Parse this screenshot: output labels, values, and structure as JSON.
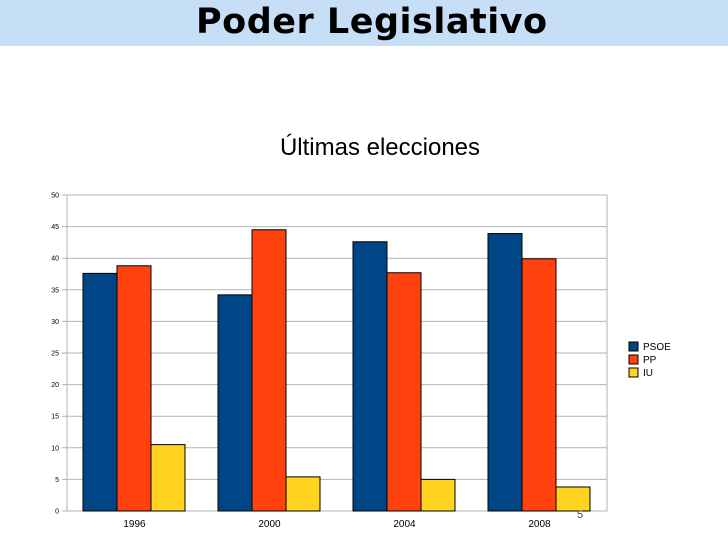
{
  "slide": {
    "title": "Poder Legislativo",
    "page_number": "5"
  },
  "colors": {
    "title_bar": "#c6def6",
    "PSOE": "#004586",
    "PP": "#ff420e",
    "IU": "#ffd320",
    "grid": "#b3b3b3"
  },
  "chart_data": {
    "type": "bar",
    "title": "Últimas elecciones",
    "xlabel": "",
    "ylabel": "",
    "categories": [
      "1996",
      "2000",
      "2004",
      "2008"
    ],
    "series": [
      {
        "name": "PSOE",
        "values": [
          37.6,
          34.2,
          42.6,
          43.9
        ]
      },
      {
        "name": "PP",
        "values": [
          38.8,
          44.5,
          37.7,
          39.9
        ]
      },
      {
        "name": "IU",
        "values": [
          10.5,
          5.4,
          5.0,
          3.8
        ]
      }
    ],
    "ylim": [
      0,
      50
    ],
    "yticks": [
      "0",
      "5",
      "10",
      "15",
      "20",
      "25",
      "30",
      "35",
      "40",
      "45",
      "50"
    ],
    "grid": true,
    "legend_position": "right"
  }
}
